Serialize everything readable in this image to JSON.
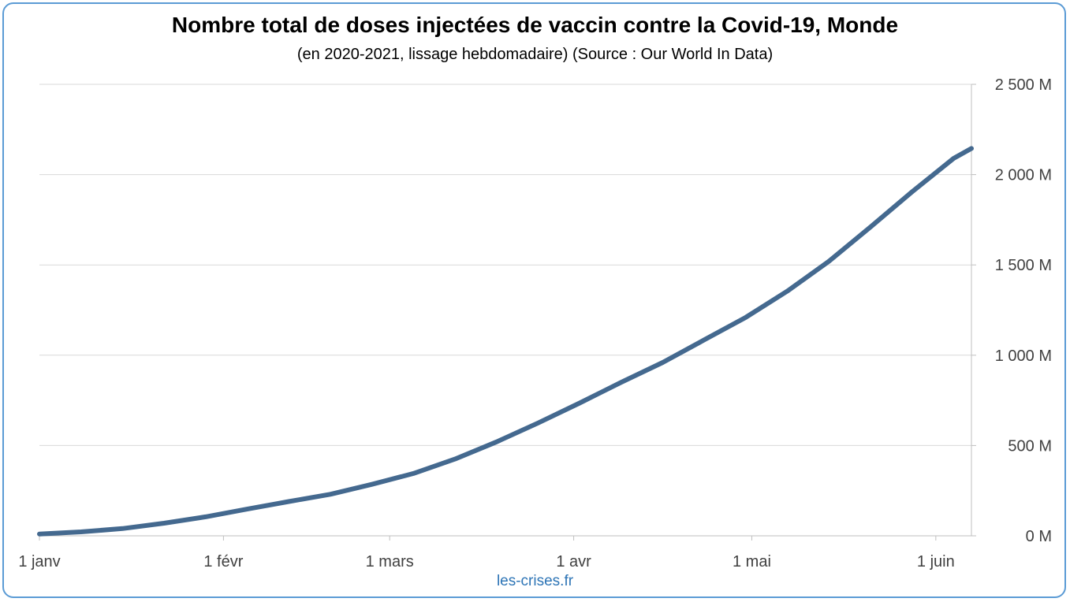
{
  "chart_data": {
    "type": "line",
    "title": "Nombre total de doses injectées de vaccin contre la Covid-19, Monde",
    "subtitle": "(en 2020-2021, lissage hebdomadaire) (Source : Our World In Data)",
    "source_label": "les-crises.fr",
    "xlabel": "",
    "ylabel": "",
    "x_ticks": [
      {
        "label": "1 janv",
        "day": 0
      },
      {
        "label": "1 févr",
        "day": 31
      },
      {
        "label": "1 mars",
        "day": 59
      },
      {
        "label": "1 avr",
        "day": 90
      },
      {
        "label": "1 mai",
        "day": 120
      },
      {
        "label": "1 juin",
        "day": 151
      }
    ],
    "xlim": [
      0,
      157
    ],
    "y_ticks": [
      {
        "label": "0 M",
        "value": 0
      },
      {
        "label": "500 M",
        "value": 500
      },
      {
        "label": "1 000 M",
        "value": 1000
      },
      {
        "label": "1 500 M",
        "value": 1500
      },
      {
        "label": "2 000 M",
        "value": 2000
      },
      {
        "label": "2 500 M",
        "value": 2500
      }
    ],
    "ylim": [
      0,
      2500
    ],
    "y_axis_position": "right",
    "grid": true,
    "line_color": "#44698f",
    "series": [
      {
        "x": [
          0,
          7,
          14,
          21,
          28,
          35,
          42,
          49,
          56,
          63,
          70,
          77,
          84,
          91,
          98,
          105,
          112,
          119,
          126,
          133,
          140,
          147,
          154,
          157
        ],
        "values": [
          10,
          22,
          40,
          70,
          105,
          148,
          190,
          230,
          285,
          345,
          425,
          520,
          625,
          735,
          850,
          960,
          1085,
          1210,
          1355,
          1520,
          1710,
          1905,
          2090,
          2145
        ]
      }
    ]
  }
}
